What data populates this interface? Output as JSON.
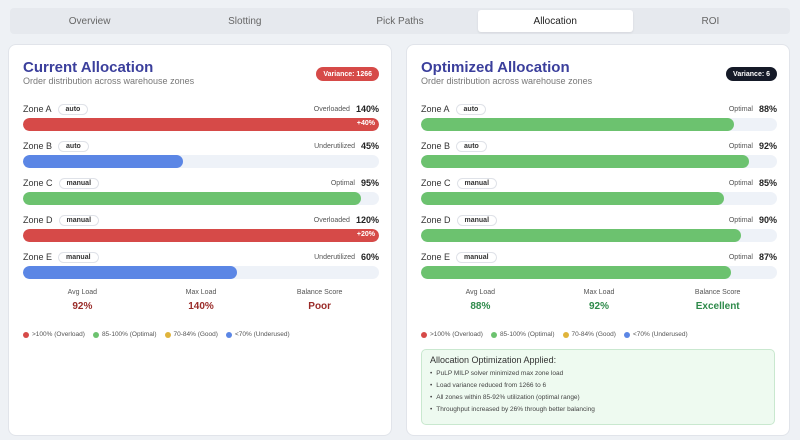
{
  "tabs": [
    {
      "label": "Overview",
      "active": false
    },
    {
      "label": "Slotting",
      "active": false
    },
    {
      "label": "Pick Paths",
      "active": false
    },
    {
      "label": "Allocation",
      "active": true
    },
    {
      "label": "ROI",
      "active": false
    }
  ],
  "colors": {
    "overloaded": "#d64a48",
    "underutilized": "#5b86e5",
    "optimal": "#6cc26f",
    "good": "#e0b43b"
  },
  "current": {
    "title": "Current Allocation",
    "subtitle": "Order distribution across warehouse zones",
    "variance": "Variance: 1266",
    "zones": [
      {
        "name": "Zone A",
        "mode": "auto",
        "status": "Overloaded",
        "percent": "140%",
        "load": 140,
        "tag": "+40%"
      },
      {
        "name": "Zone B",
        "mode": "auto",
        "status": "Underutilized",
        "percent": "45%",
        "load": 45,
        "tag": ""
      },
      {
        "name": "Zone C",
        "mode": "manual",
        "status": "Optimal",
        "percent": "95%",
        "load": 95,
        "tag": ""
      },
      {
        "name": "Zone D",
        "mode": "manual",
        "status": "Overloaded",
        "percent": "120%",
        "load": 120,
        "tag": "+20%"
      },
      {
        "name": "Zone E",
        "mode": "manual",
        "status": "Underutilized",
        "percent": "60%",
        "load": 60,
        "tag": ""
      }
    ],
    "stats": [
      {
        "label": "Avg Load",
        "value": "92%"
      },
      {
        "label": "Max Load",
        "value": "140%"
      },
      {
        "label": "Balance Score",
        "value": "Poor"
      }
    ]
  },
  "optimized": {
    "title": "Optimized Allocation",
    "subtitle": "Order distribution across warehouse zones",
    "variance": "Variance: 6",
    "zones": [
      {
        "name": "Zone A",
        "mode": "auto",
        "status": "Optimal",
        "percent": "88%",
        "load": 88,
        "tag": ""
      },
      {
        "name": "Zone B",
        "mode": "auto",
        "status": "Optimal",
        "percent": "92%",
        "load": 92,
        "tag": ""
      },
      {
        "name": "Zone C",
        "mode": "manual",
        "status": "Optimal",
        "percent": "85%",
        "load": 85,
        "tag": ""
      },
      {
        "name": "Zone D",
        "mode": "manual",
        "status": "Optimal",
        "percent": "90%",
        "load": 90,
        "tag": ""
      },
      {
        "name": "Zone E",
        "mode": "manual",
        "status": "Optimal",
        "percent": "87%",
        "load": 87,
        "tag": ""
      }
    ],
    "stats": [
      {
        "label": "Avg Load",
        "value": "88%"
      },
      {
        "label": "Max Load",
        "value": "92%"
      },
      {
        "label": "Balance Score",
        "value": "Excellent"
      }
    ]
  },
  "legend": [
    {
      "label": ">100% (Overload)",
      "color": "#d64a48"
    },
    {
      "label": "85-100% (Optimal)",
      "color": "#6cc26f"
    },
    {
      "label": "70-84% (Good)",
      "color": "#e0b43b"
    },
    {
      "label": "<70% (Underused)",
      "color": "#5b86e5"
    }
  ],
  "applied": {
    "title": "Allocation Optimization Applied:",
    "items": [
      "PuLP MILP solver minimized max zone load",
      "Load variance reduced from 1266 to 6",
      "All zones within 85-92% utilization (optimal range)",
      "Throughput increased by 26% through better balancing"
    ]
  }
}
